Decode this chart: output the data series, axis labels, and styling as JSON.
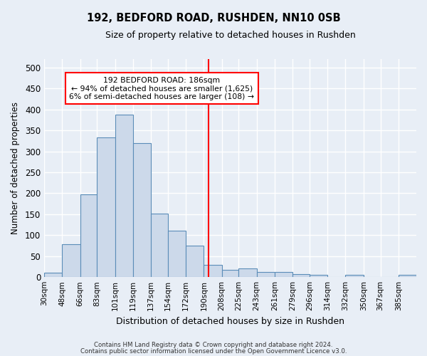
{
  "title": "192, BEDFORD ROAD, RUSHDEN, NN10 0SB",
  "subtitle": "Size of property relative to detached houses in Rushden",
  "xlabel": "Distribution of detached houses by size in Rushden",
  "ylabel": "Number of detached properties",
  "bar_color": "#ccd9ea",
  "bar_edge_color": "#5b8db8",
  "background_color": "#e8eef6",
  "fig_color": "#e8eef6",
  "grid_color": "#ffffff",
  "red_line_x": 186,
  "annotation_title": "192 BEDFORD ROAD: 186sqm",
  "annotation_line1": "← 94% of detached houses are smaller (1,625)",
  "annotation_line2": "6% of semi-detached houses are larger (108) →",
  "categories": [
    "30sqm",
    "48sqm",
    "66sqm",
    "83sqm",
    "101sqm",
    "119sqm",
    "137sqm",
    "154sqm",
    "172sqm",
    "190sqm",
    "208sqm",
    "225sqm",
    "243sqm",
    "261sqm",
    "279sqm",
    "296sqm",
    "314sqm",
    "332sqm",
    "350sqm",
    "367sqm",
    "385sqm"
  ],
  "bin_edges": [
    21,
    39,
    57,
    74,
    92,
    110,
    128,
    145,
    163,
    181,
    199,
    216,
    234,
    252,
    270,
    287,
    305,
    323,
    341,
    358,
    376,
    394
  ],
  "values": [
    10,
    78,
    198,
    333,
    388,
    320,
    152,
    110,
    75,
    30,
    17,
    20,
    13,
    13,
    7,
    5,
    0,
    5,
    0,
    0,
    5
  ],
  "ylim": [
    0,
    520
  ],
  "yticks": [
    0,
    50,
    100,
    150,
    200,
    250,
    300,
    350,
    400,
    450,
    500
  ],
  "footnote1": "Contains HM Land Registry data © Crown copyright and database right 2024.",
  "footnote2": "Contains public sector information licensed under the Open Government Licence v3.0."
}
